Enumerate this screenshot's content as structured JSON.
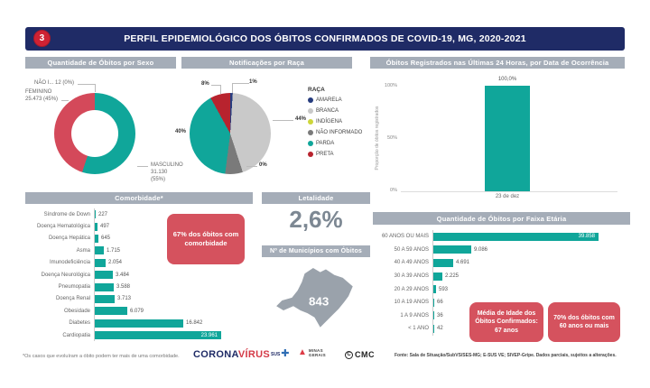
{
  "header": {
    "badge": "3",
    "title": "PERFIL EPIDEMIOLÓGICO DOS ÓBITOS CONFIRMADOS DE COVID-19, MG, 2020-2021"
  },
  "colors": {
    "navy": "#1f2b66",
    "teal": "#10a69a",
    "red_accent": "#d5525e",
    "section_header_gray": "#a5adb8",
    "badge_red": "#cf2233"
  },
  "chart_data": [
    {
      "id": "sexo",
      "type": "pie",
      "subtype": "donut",
      "title": "Quantidade de Óbitos por Sexo",
      "slices": [
        {
          "label": "MASCULINO",
          "value": 31130,
          "display": "31.130 (55%)",
          "pct": 55,
          "color": "#10a69a"
        },
        {
          "label": "FEMININO",
          "value": 25473,
          "display": "25.473 (45%)",
          "pct": 45,
          "color": "#d4495a"
        },
        {
          "label": "NÃO I...",
          "value": 12,
          "display": "12 (0%)",
          "pct": 0,
          "color": "#a5adb8"
        }
      ]
    },
    {
      "id": "raca",
      "type": "pie",
      "title": "Notificações por Raça",
      "legend_title": "RAÇA",
      "legend_position": "right",
      "slices": [
        {
          "label": "AMARELA",
          "pct": 1,
          "color": "#263c7e"
        },
        {
          "label": "BRANCA",
          "pct": 44,
          "color": "#c9c9c9"
        },
        {
          "label": "INDÍGENA",
          "pct": 0,
          "color": "#cdd63a"
        },
        {
          "label": "NÃO INFORMADO",
          "pct": 7,
          "color": "#7a7a7a"
        },
        {
          "label": "PARDA",
          "pct": 40,
          "color": "#10a69a"
        },
        {
          "label": "PRETA",
          "pct": 8,
          "color": "#b8232e"
        }
      ],
      "callout_labels": {
        "amarela": "1%",
        "branca": "44%",
        "indigena": "0%",
        "parda": "40%",
        "preta": "8%"
      }
    },
    {
      "id": "ultimas24",
      "type": "bar",
      "title": "Óbitos Registrados nas Últimas 24 Horas, por Data de Ocorrência",
      "categories": [
        "23 de dez"
      ],
      "values": [
        100.0
      ],
      "bar_label": "100,0%",
      "ylabel": "Proporção de óbitos registrados",
      "yticks": [
        "100%",
        "50%",
        "0%"
      ],
      "ylim": [
        0,
        100
      ],
      "color": "#10a69a"
    },
    {
      "id": "comorbidade",
      "type": "bar",
      "subtype": "horizontal",
      "title": "Comorbidade*",
      "categories": [
        "Síndrome de Down",
        "Doença Hematológica",
        "Doença Hepática",
        "Asma",
        "Imunodeficiência",
        "Doença Neurológica",
        "Pneumopatia",
        "Doença Renal",
        "Obesidade",
        "Diabetes",
        "Cardiopatia"
      ],
      "values": [
        227,
        497,
        645,
        1715,
        2054,
        3484,
        3588,
        3713,
        6079,
        16842,
        23961
      ],
      "displays": [
        "227",
        "497",
        "645",
        "1.715",
        "2.054",
        "3.484",
        "3.588",
        "3.713",
        "6.079",
        "16.842",
        "23.961"
      ],
      "color": "#10a69a",
      "label_inside_index": 10
    },
    {
      "id": "faixa",
      "type": "bar",
      "subtype": "horizontal",
      "title": "Quantidade de Óbitos por Faixa Etária",
      "categories": [
        "60 ANOS OU MAIS",
        "50 A 59 ANOS",
        "40 A 49 ANOS",
        "30 A 39 ANOS",
        "20 A 29 ANOS",
        "10 A 19 ANOS",
        "1 A 9 ANOS",
        "< 1 ANO"
      ],
      "values": [
        39858,
        9086,
        4691,
        2225,
        593,
        66,
        36,
        42
      ],
      "displays": [
        "39.858",
        "9.086",
        "4.691",
        "2.225",
        "593",
        "66",
        "36",
        "42"
      ],
      "color": "#10a69a",
      "label_inside_index": 0
    }
  ],
  "panels": {
    "comorbidade": {
      "callout": "67% dos óbitos com comorbidade",
      "footnote": "*Os casos que evoluíram a óbito podem ter mais de uma comorbidade."
    },
    "letalidade": {
      "title": "Letalidade",
      "value": "2,6%",
      "municipios_title": "Nº de Municípios com Óbitos",
      "municipios_value": "843"
    },
    "faixa": {
      "callout_media": "Média de Idade dos Óbitos Confirmados: 67 anos",
      "callout_60mais": "70% dos óbitos com 60 anos ou mais"
    }
  },
  "footer": {
    "logos": {
      "corona_part1": "CORONA",
      "corona_part2": "VÍRUS",
      "sus": "SUS",
      "sus_cross": "✚",
      "minas_line1": "MINAS",
      "minas_line2": "GERAIS",
      "minas_triangle": "▲",
      "cmc_c": "C",
      "cmc": "CMC"
    },
    "source": "Fonte: Sala de Situação/SubVS/SES-MG; E-SUS VE; SIVEP-Gripe. Dados parciais, sujeitos a alterações."
  }
}
